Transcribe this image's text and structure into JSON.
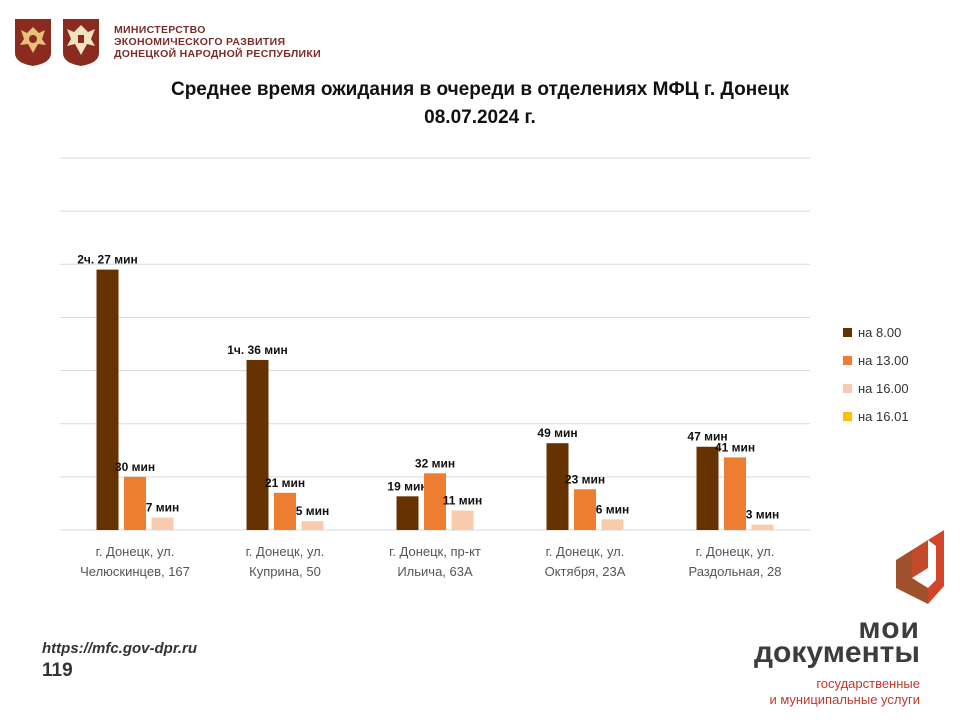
{
  "header": {
    "ministry_lines": [
      "МИНИСТЕРСТВО",
      "ЭКОНОМИЧЕСКОГО РАЗВИТИЯ",
      "ДОНЕЦКОЙ НАРОДНОЙ РЕСПУБЛИКИ"
    ]
  },
  "footer": {
    "url": "https://mfc.gov-dpr.ru",
    "page": "119"
  },
  "brand": {
    "line1": "мои",
    "line2": "документы",
    "line3": "государственные",
    "line4": "и муниципальные услуги",
    "color": "#c0392b"
  },
  "chart_data": {
    "type": "bar",
    "title": "Среднее время ожидания в очереди в отделениях МФЦ г. Донецк",
    "subtitle": "08.07.2024 г.",
    "categories": [
      [
        "г. Донецк, ул.",
        "Челюскинцев, 167"
      ],
      [
        "г. Донецк, ул.",
        "Куприна, 50"
      ],
      [
        "г. Донецк, пр-кт",
        "Ильича, 63А"
      ],
      [
        "г. Донецк, ул.",
        "Октября, 23А"
      ],
      [
        "г. Донецк, ул.",
        "Раздольная, 28"
      ]
    ],
    "unit": "min",
    "ylim": [
      0,
      210
    ],
    "grid": true,
    "legend_position": "right",
    "series": [
      {
        "name": "на 8.00",
        "color": "#663300",
        "values": [
          147,
          96,
          19,
          49,
          47
        ],
        "labels": [
          "2ч. 27 мин",
          "1ч. 36 мин",
          "19 мин",
          "49 мин",
          "47 мин"
        ]
      },
      {
        "name": "на 13.00",
        "color": "#ed7d31",
        "values": [
          30,
          21,
          32,
          23,
          41
        ],
        "labels": [
          "30 мин",
          "21 мин",
          "32 мин",
          "23 мин",
          "41 мин"
        ]
      },
      {
        "name": "на 16.00",
        "color": "#f8cbad",
        "values": [
          7,
          5,
          11,
          6,
          3
        ],
        "labels": [
          "7 мин",
          "5 мин",
          "11 мин",
          "6 мин",
          "3 мин"
        ]
      },
      {
        "name": "на 16.01",
        "color": "#ffc000",
        "values": [
          0,
          0,
          0,
          0,
          0
        ],
        "labels": [
          "",
          "",
          "",
          "",
          ""
        ]
      }
    ]
  }
}
